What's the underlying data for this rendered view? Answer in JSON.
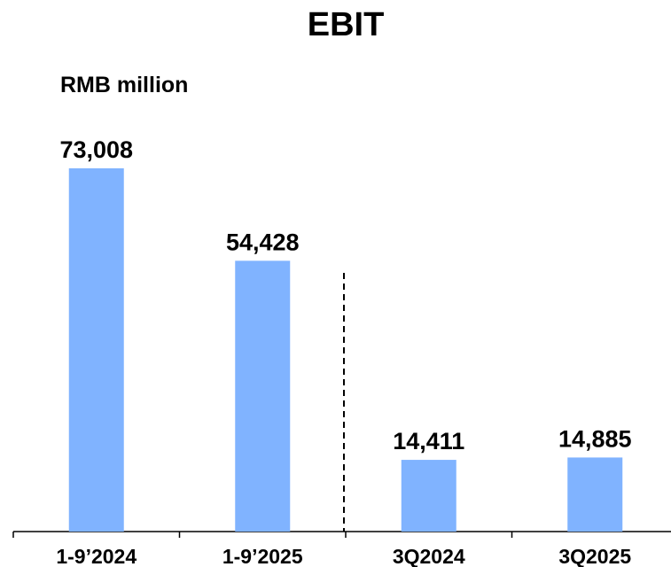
{
  "chart_data": {
    "type": "bar",
    "title": "EBIT",
    "subtitle": "RMB million",
    "categories": [
      "1-9’2024",
      "1-9’2025",
      "3Q2024",
      "3Q2025"
    ],
    "values": [
      73008,
      54428,
      14411,
      14885
    ],
    "value_labels": [
      "73,008",
      "54,428",
      "14,411",
      "14,885"
    ],
    "color": "#80b3ff"
  }
}
